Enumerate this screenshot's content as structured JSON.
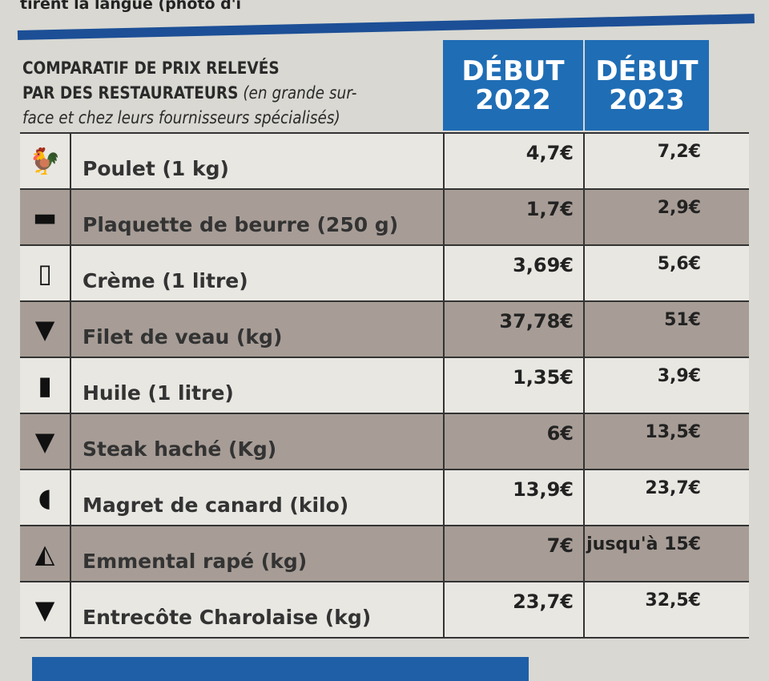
{
  "caption_fragment": "tirent la langue (photo d'i",
  "title": {
    "bold1": "COMPARATIF DE PRIX RELEVÉS",
    "bold2": "PAR DES RESTAURATEURS",
    "italic1": " (en grande sur-",
    "italic2": "face et chez leurs fournisseurs spécialisés)"
  },
  "headers": [
    {
      "line1": "DÉBUT",
      "line2": "2022"
    },
    {
      "line1": "DÉBUT",
      "line2": "2023"
    }
  ],
  "colors": {
    "header_blue": "#1f6db5",
    "rule_blue": "#1c4f96",
    "alt_row": "#a79d96"
  },
  "rows": [
    {
      "icon": "chicken-icon",
      "glyph": "🐓",
      "label": "Poulet (1 kg)",
      "y2022": "4,7€",
      "y2023": "7,2€"
    },
    {
      "icon": "butter-icon",
      "glyph": "▬",
      "label": "Plaquette de beurre (250 g)",
      "y2022": "1,7€",
      "y2023": "2,9€"
    },
    {
      "icon": "cream-carton-icon",
      "glyph": "▯",
      "label": "Crème (1 litre)",
      "y2022": "3,69€",
      "y2023": "5,6€"
    },
    {
      "icon": "cow-head-icon",
      "glyph": "▼",
      "label": "Filet de veau (kg)",
      "y2022": "37,78€",
      "y2023": "51€"
    },
    {
      "icon": "oil-bottle-icon",
      "glyph": "▮",
      "label": "Huile (1 litre)",
      "y2022": "1,35€",
      "y2023": "3,9€"
    },
    {
      "icon": "cow-head-icon",
      "glyph": "▼",
      "label": "Steak haché (Kg)",
      "y2022": "6€",
      "y2023": "13,5€"
    },
    {
      "icon": "duck-head-icon",
      "glyph": "◖",
      "label": "Magret de canard  (kilo)",
      "y2022": "13,9€",
      "y2023": "23,7€"
    },
    {
      "icon": "cheese-icon",
      "glyph": "◭",
      "label": "Emmental rapé (kg)",
      "y2022": "7€",
      "y2023": "jusqu'à 15€"
    },
    {
      "icon": "cow-head-icon",
      "glyph": "▼",
      "label": "Entrecôte Charolaise (kg)",
      "y2022": "23,7€",
      "y2023": "32,5€"
    }
  ]
}
